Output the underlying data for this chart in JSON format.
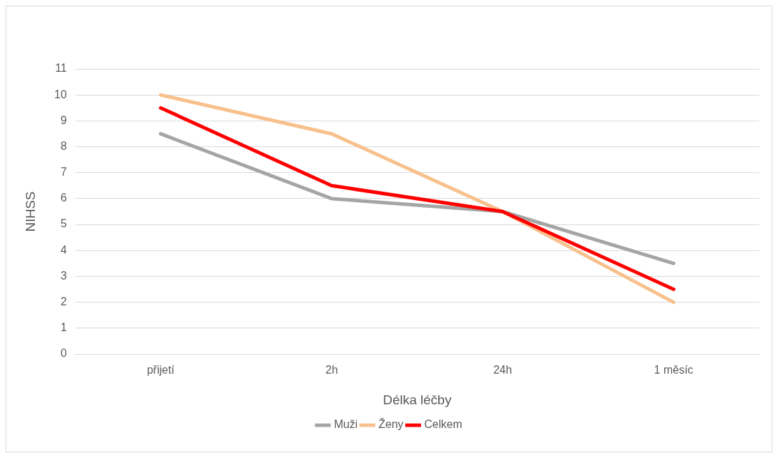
{
  "chart_data": {
    "type": "line",
    "xlabel": "Délka léčby",
    "ylabel": "NIHSS",
    "categories": [
      "přijetí",
      "2h",
      "24h",
      "1 měsíc"
    ],
    "series": [
      {
        "name": "Muži",
        "color": "#a5a5a5",
        "values": [
          8.5,
          6,
          5.5,
          3.5
        ]
      },
      {
        "name": "Ženy",
        "color": "#f8c08c",
        "values": [
          10,
          8.5,
          5.5,
          2
        ]
      },
      {
        "name": "Celkem",
        "color": "#ff0000",
        "values": [
          9.5,
          6.5,
          5.5,
          2.5
        ]
      }
    ],
    "ylim": [
      0,
      11
    ],
    "yticks": [
      0,
      1,
      2,
      3,
      4,
      5,
      6,
      7,
      8,
      9,
      10,
      11
    ],
    "grid": "y",
    "legend": "bottom",
    "marker": "none",
    "line_style": "solid"
  }
}
